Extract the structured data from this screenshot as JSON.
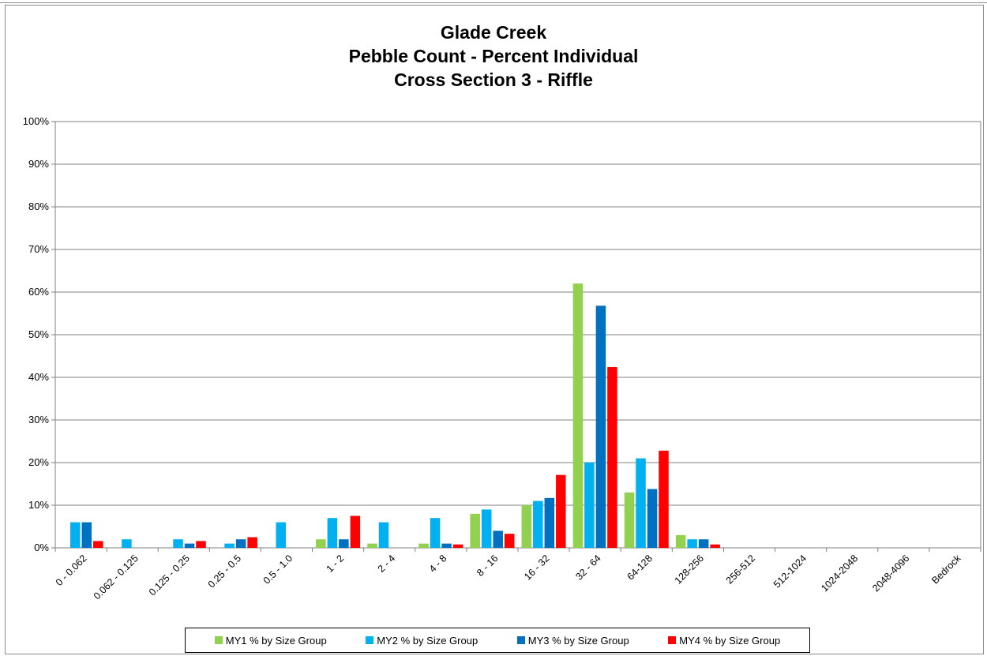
{
  "chart_data": {
    "type": "bar",
    "title": [
      "Glade Creek",
      "Pebble Count - Percent Individual",
      "Cross Section 3 - Riffle"
    ],
    "categories": [
      "0 - 0.062",
      "0.062 - 0.125",
      "0.125 - 0.25",
      "0.25 - 0.5",
      "0.5 - 1.0",
      "1 - 2",
      "2 - 4",
      "4 - 8",
      "8 - 16",
      "16 - 32",
      "32 - 64",
      "64-128",
      "128-256",
      "256-512",
      "512-1024",
      "1024-2048",
      "2048-4096",
      "Bedrock"
    ],
    "series": [
      {
        "name": "MY1 % by Size Group",
        "color": "#92d050",
        "values": [
          0,
          0,
          0,
          0,
          0,
          2,
          1,
          1,
          8,
          10,
          62,
          13,
          3,
          0,
          0,
          0,
          0,
          0
        ]
      },
      {
        "name": "MY2 % by Size Group",
        "color": "#00b0f0",
        "values": [
          6,
          2,
          2,
          1,
          6,
          7,
          6,
          7,
          9,
          11,
          20,
          21,
          2,
          0,
          0,
          0,
          0,
          0
        ]
      },
      {
        "name": "MY3 % by Size Group",
        "color": "#0070c0",
        "values": [
          6,
          0,
          1,
          2,
          0,
          2,
          0,
          1,
          4,
          11.7,
          56.8,
          13.8,
          2,
          0,
          0,
          0,
          0,
          0
        ]
      },
      {
        "name": "MY4 % by Size Group",
        "color": "#ff0000",
        "values": [
          1.6,
          0,
          1.6,
          2.5,
          0,
          7.5,
          0,
          0.8,
          3.3,
          17.1,
          42.4,
          22.8,
          0.8,
          0,
          0,
          0,
          0,
          0
        ]
      }
    ],
    "y_ticks": [
      "0%",
      "10%",
      "20%",
      "30%",
      "40%",
      "50%",
      "60%",
      "70%",
      "80%",
      "90%",
      "100%"
    ],
    "ylim": [
      0,
      100
    ],
    "grid": true,
    "legend_position": "bottom"
  }
}
